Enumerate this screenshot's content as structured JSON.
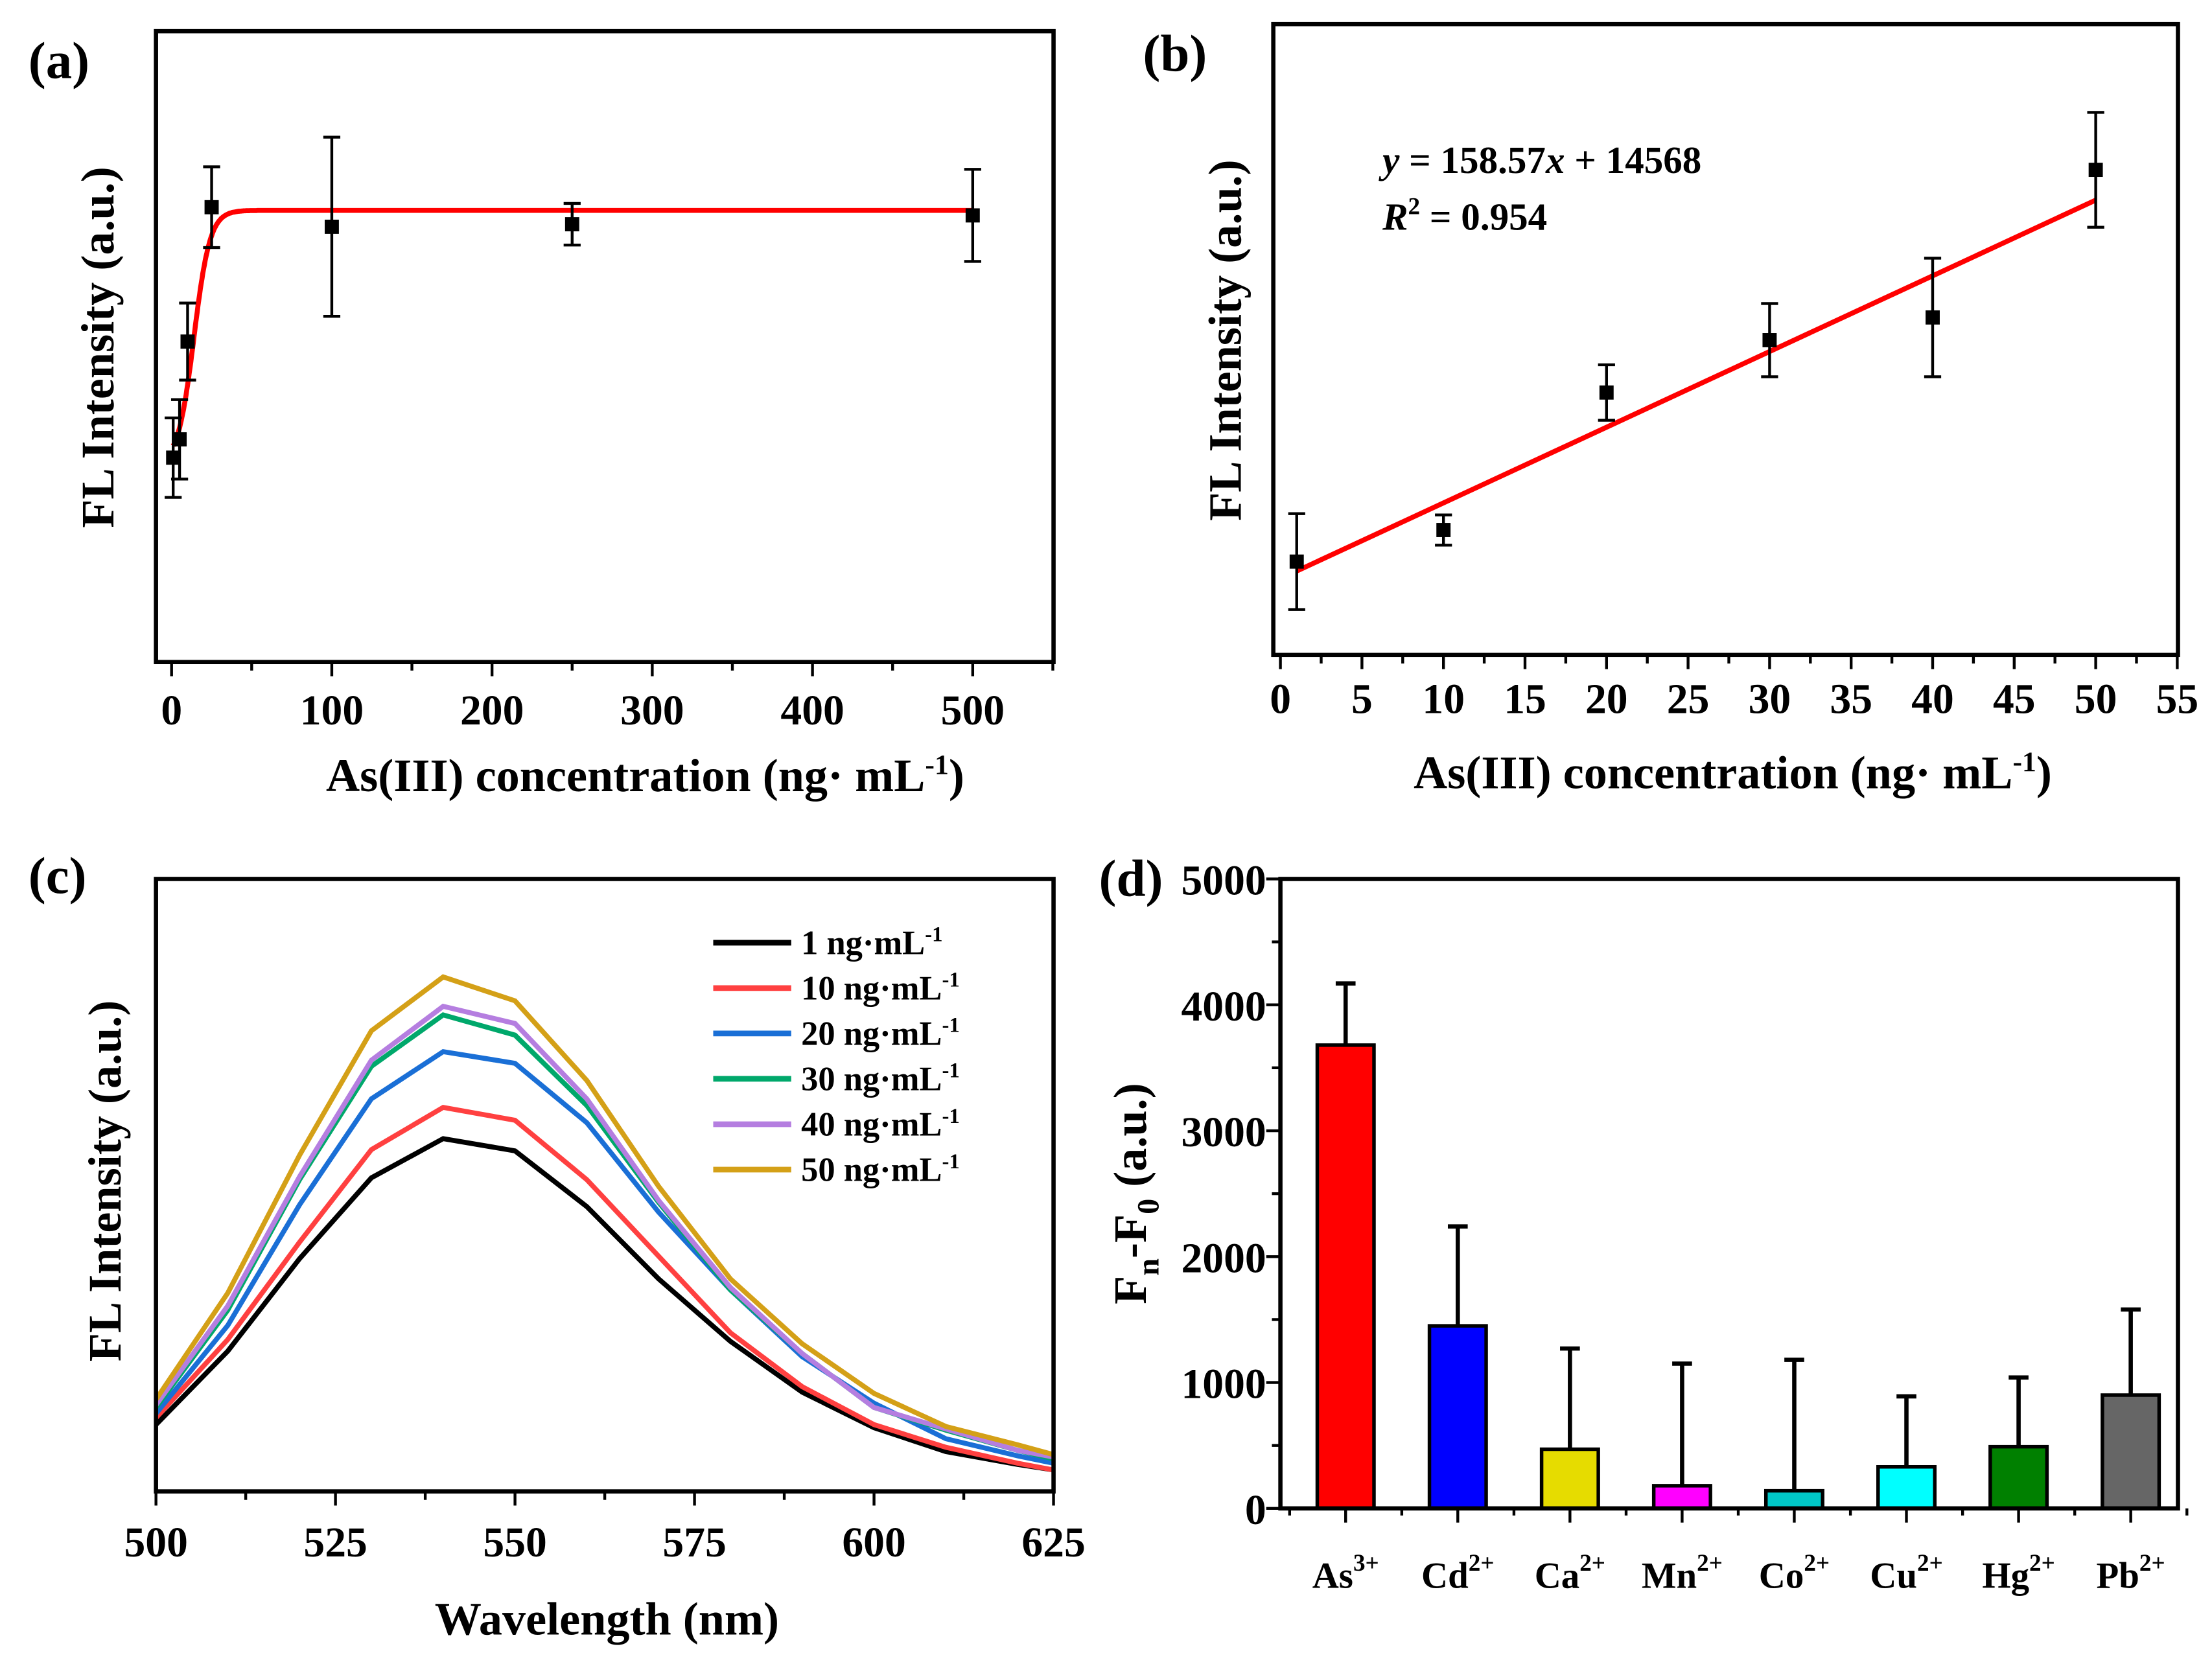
{
  "chart_data": [
    {
      "panel": "(a)",
      "type": "scatter",
      "xlabel": {
        "main": "As(III) concentration (ng· mL",
        "sup": "-1",
        "end": ")"
      },
      "ylabel": "FL Intensity (a.u.)",
      "xlim": [
        -10,
        550
      ],
      "ylim": [
        0,
        100
      ],
      "xticks": [
        0,
        100,
        200,
        300,
        400,
        500
      ],
      "points": [
        {
          "x": 1,
          "y": 32.4,
          "err": 6.3
        },
        {
          "x": 5,
          "y": 35.3,
          "err": 6.3
        },
        {
          "x": 10,
          "y": 50.8,
          "err": 6.1
        },
        {
          "x": 25,
          "y": 72.1,
          "err": 6.4
        },
        {
          "x": 100,
          "y": 69.0,
          "err": 14.2
        },
        {
          "x": 250,
          "y": 69.4,
          "err": 3.3
        },
        {
          "x": 500,
          "y": 70.8,
          "err": 7.3
        }
      ],
      "fit": {
        "type": "sigmoid",
        "bottom": 31.5,
        "top": 71.6,
        "x0": 14,
        "dx": 5,
        "color": "#ff0000"
      }
    },
    {
      "panel": "(b)",
      "type": "scatter",
      "xlabel": {
        "main": "As(III) concentration (ng· mL",
        "sup": "-1",
        "end": ")"
      },
      "ylabel": "FL Intensity (a.u.)",
      "xlim": [
        -0.4,
        55
      ],
      "ylim": [
        0,
        100
      ],
      "xticks": [
        0,
        5,
        10,
        15,
        20,
        25,
        30,
        35,
        40,
        45,
        50,
        55
      ],
      "points": [
        {
          "x": 1,
          "y": 14.8,
          "err": 7.6
        },
        {
          "x": 10,
          "y": 19.8,
          "err": 2.4
        },
        {
          "x": 20,
          "y": 41.6,
          "err": 4.4
        },
        {
          "x": 30,
          "y": 49.9,
          "err": 5.8
        },
        {
          "x": 40,
          "y": 53.5,
          "err": 9.4
        },
        {
          "x": 50,
          "y": 76.9,
          "err": 9.1
        }
      ],
      "fit": {
        "type": "linear",
        "x": [
          1,
          50
        ],
        "y": [
          13.3,
          72.1
        ],
        "color": "#ff0000"
      },
      "equation": {
        "lhs": "y",
        "eq1": " = 158.57",
        "x": "x",
        "eq2": " + 14568",
        "r": "R",
        "rsup": "2",
        "req": " = 0.954"
      }
    },
    {
      "panel": "(c)",
      "type": "line",
      "xlabel": "Wavelength (nm)",
      "ylabel": "FL Intensity (a.u.)",
      "xlim": [
        500,
        625
      ],
      "ylim": [
        0,
        100
      ],
      "xticks": [
        500,
        525,
        550,
        575,
        600,
        625
      ],
      "x": [
        500,
        510,
        520,
        530,
        540,
        550,
        560,
        570,
        580,
        590,
        600,
        610,
        620,
        625
      ],
      "series": [
        {
          "name": "1 ng·mL",
          "sup": "-1",
          "color": "#000000",
          "values": [
            10.9,
            22.9,
            38.0,
            51.2,
            57.6,
            55.6,
            46.5,
            34.7,
            24.5,
            16.2,
            10.4,
            6.5,
            4.4,
            3.5
          ]
        },
        {
          "name": "10 ng·mL",
          "sup": "-1",
          "color": "#ff4040",
          "values": [
            12.0,
            24.8,
            40.7,
            55.8,
            62.7,
            60.6,
            50.9,
            38.4,
            25.9,
            17.1,
            10.9,
            7.2,
            4.6,
            3.5
          ]
        },
        {
          "name": "20 ng·mL",
          "sup": "-1",
          "color": "#1a6fd6",
          "values": [
            12.7,
            27.1,
            46.8,
            64.1,
            71.8,
            69.9,
            60.2,
            45.6,
            32.9,
            22.0,
            14.4,
            8.6,
            5.8,
            4.6
          ]
        },
        {
          "name": "30 ng·mL",
          "sup": "-1",
          "color": "#00a86b",
          "values": [
            13.7,
            29.6,
            50.9,
            69.4,
            77.8,
            74.5,
            63.0,
            47.2,
            32.9,
            22.5,
            13.7,
            10.0,
            6.7,
            5.3
          ]
        },
        {
          "name": "40 ng·mL",
          "sup": "-1",
          "color": "#b57ee0",
          "values": [
            14.1,
            30.3,
            51.4,
            70.4,
            79.2,
            76.4,
            64.1,
            47.5,
            33.3,
            22.5,
            13.7,
            10.2,
            6.7,
            5.6
          ]
        },
        {
          "name": "50 ng·mL",
          "sup": "-1",
          "color": "#d4a017",
          "values": [
            15.0,
            32.4,
            54.9,
            75.2,
            84.0,
            80.1,
            67.1,
            49.8,
            34.7,
            24.1,
            16.0,
            10.6,
            7.6,
            6.0
          ]
        }
      ],
      "legend": "top-right"
    },
    {
      "panel": "(d)",
      "type": "bar",
      "ylabel": {
        "a": "F",
        "asub": "n",
        "b": "-F",
        "bsub": "0",
        "c": " (a.u.)"
      },
      "ylim": [
        0,
        5000
      ],
      "yticks": [
        0,
        1000,
        2000,
        3000,
        4000,
        5000
      ],
      "categories": [
        {
          "base": "As",
          "sup": "3+"
        },
        {
          "base": "Cd",
          "sup": "2+"
        },
        {
          "base": "Ca",
          "sup": "2+"
        },
        {
          "base": "Mn",
          "sup": "2+"
        },
        {
          "base": "Co",
          "sup": "2+"
        },
        {
          "base": "Cu",
          "sup": "2+"
        },
        {
          "base": "Hg",
          "sup": "2+"
        },
        {
          "base": "Pb",
          "sup": "2+"
        }
      ],
      "values": [
        3680,
        1450,
        470,
        180,
        140,
        330,
        490,
        900
      ],
      "err_top": [
        4170,
        2240,
        1270,
        1150,
        1180,
        890,
        1040,
        1580
      ],
      "colors": [
        "#ff0000",
        "#0000ff",
        "#e6dc00",
        "#ff00ff",
        "#00c8c8",
        "#00ffff",
        "#008000",
        "#666666"
      ]
    }
  ]
}
